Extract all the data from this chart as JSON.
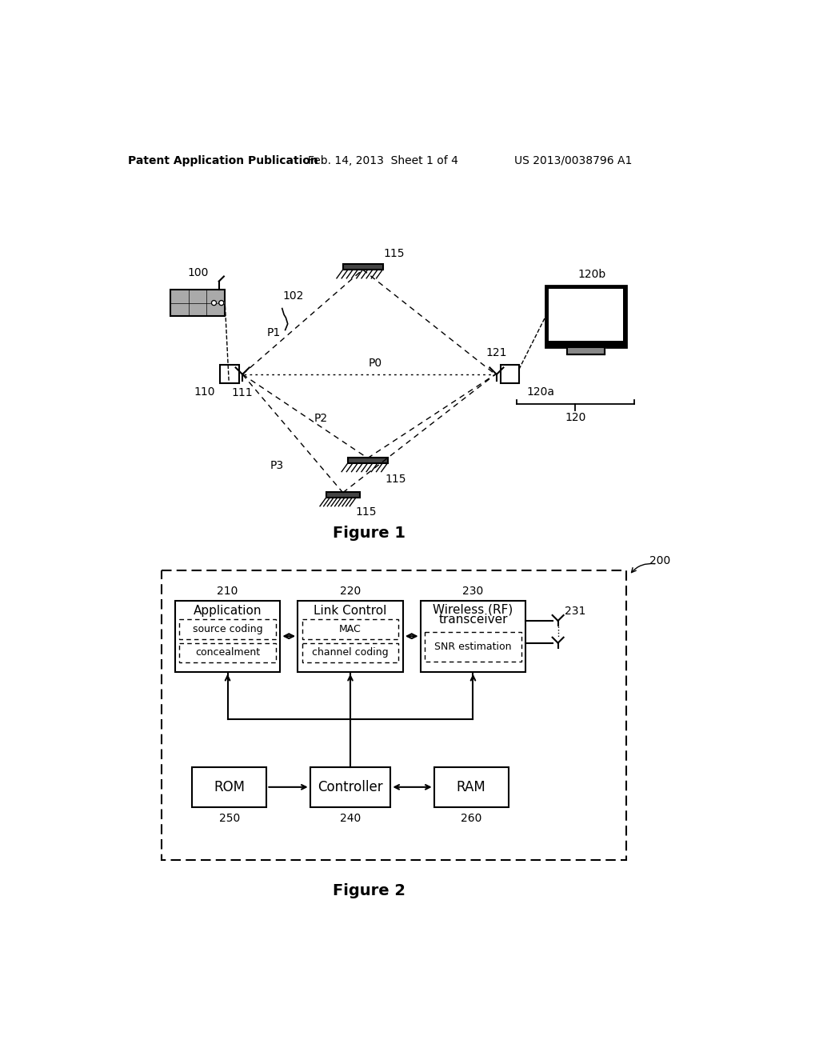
{
  "header_left": "Patent Application Publication",
  "header_mid": "Feb. 14, 2013  Sheet 1 of 4",
  "header_right": "US 2013/0038796 A1",
  "fig1_title": "Figure 1",
  "fig2_title": "Figure 2",
  "background_color": "#ffffff",
  "line_color": "#000000"
}
